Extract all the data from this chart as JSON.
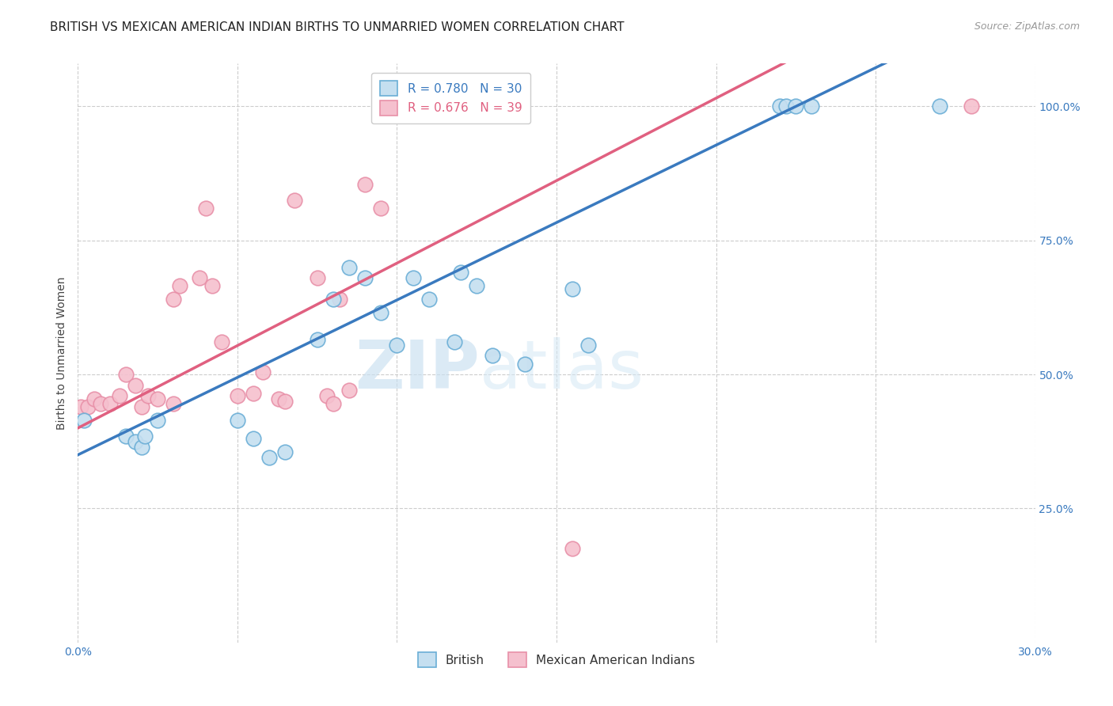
{
  "title": "BRITISH VS MEXICAN AMERICAN INDIAN BIRTHS TO UNMARRIED WOMEN CORRELATION CHART",
  "source": "Source: ZipAtlas.com",
  "ylabel": "Births to Unmarried Women",
  "watermark_zip": "ZIP",
  "watermark_atlas": "atlas",
  "british_R": 0.78,
  "british_N": 30,
  "mexican_R": 0.676,
  "mexican_N": 39,
  "x_min": 0.0,
  "x_max": 0.3,
  "y_min": 0.0,
  "y_max": 1.08,
  "x_ticks": [
    0.0,
    0.05,
    0.1,
    0.15,
    0.2,
    0.25,
    0.3
  ],
  "x_tick_labels": [
    "0.0%",
    "",
    "",
    "",
    "",
    "",
    "30.0%"
  ],
  "y_ticks": [
    0.25,
    0.5,
    0.75,
    1.0
  ],
  "y_tick_labels": [
    "25.0%",
    "50.0%",
    "75.0%",
    "100.0%"
  ],
  "british_color_edge": "#6aaed6",
  "british_color_line": "#3a7abf",
  "british_color_fill": "#c5dff0",
  "mexican_color_edge": "#e890a8",
  "mexican_color_line": "#e06080",
  "mexican_color_fill": "#f5c0ce",
  "british_x": [
    0.002,
    0.015,
    0.018,
    0.02,
    0.021,
    0.025,
    0.05,
    0.055,
    0.06,
    0.065,
    0.075,
    0.08,
    0.085,
    0.09,
    0.095,
    0.1,
    0.105,
    0.11,
    0.118,
    0.12,
    0.125,
    0.13,
    0.14,
    0.155,
    0.16,
    0.22,
    0.222,
    0.225,
    0.23,
    0.27
  ],
  "british_y": [
    0.415,
    0.385,
    0.375,
    0.365,
    0.385,
    0.415,
    0.415,
    0.38,
    0.345,
    0.355,
    0.565,
    0.64,
    0.7,
    0.68,
    0.615,
    0.555,
    0.68,
    0.64,
    0.56,
    0.69,
    0.665,
    0.535,
    0.52,
    0.66,
    0.555,
    1.0,
    1.0,
    1.0,
    1.0,
    1.0
  ],
  "mexican_x": [
    0.001,
    0.003,
    0.005,
    0.007,
    0.01,
    0.013,
    0.015,
    0.018,
    0.02,
    0.022,
    0.025,
    0.03,
    0.03,
    0.032,
    0.038,
    0.04,
    0.042,
    0.045,
    0.05,
    0.055,
    0.058,
    0.063,
    0.065,
    0.068,
    0.075,
    0.078,
    0.08,
    0.082,
    0.085,
    0.09,
    0.095,
    0.1,
    0.105,
    0.11,
    0.12,
    0.125,
    0.13,
    0.155,
    0.28
  ],
  "mexican_y": [
    0.44,
    0.44,
    0.455,
    0.445,
    0.445,
    0.46,
    0.5,
    0.48,
    0.44,
    0.46,
    0.455,
    0.445,
    0.64,
    0.665,
    0.68,
    0.81,
    0.665,
    0.56,
    0.46,
    0.465,
    0.505,
    0.455,
    0.45,
    0.825,
    0.68,
    0.46,
    0.445,
    0.64,
    0.47,
    0.855,
    0.81,
    1.0,
    1.0,
    1.0,
    1.0,
    1.0,
    1.0,
    0.175,
    1.0
  ],
  "background_color": "#ffffff",
  "grid_color": "#cccccc",
  "title_fontsize": 11,
  "axis_label_fontsize": 10,
  "tick_fontsize": 10,
  "marker_size": 180
}
